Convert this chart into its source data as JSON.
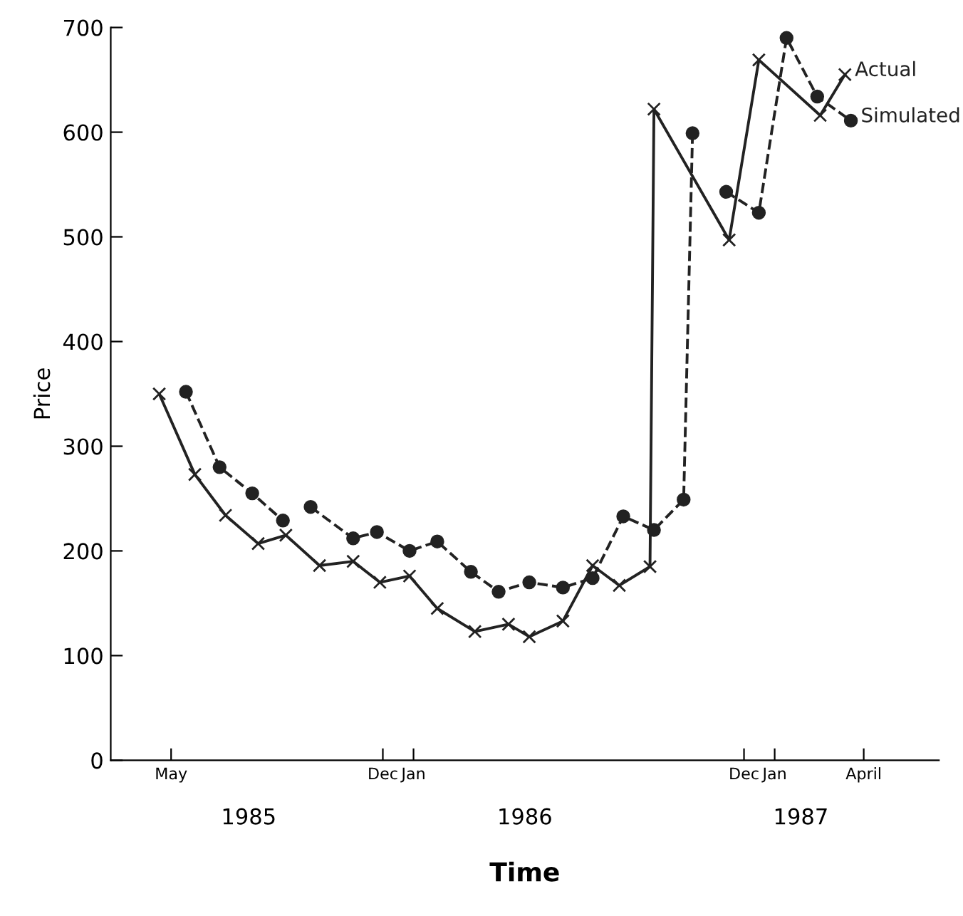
{
  "chart_data": {
    "type": "line",
    "xlabel": "Time",
    "ylabel": "Price",
    "xlim": [
      "1985-03-01",
      "1987-06-16"
    ],
    "ylim": [
      0,
      700
    ],
    "yticks": [
      0,
      100,
      200,
      300,
      400,
      500,
      600,
      700
    ],
    "xticks": [
      {
        "value": "1985-05",
        "label": "May"
      },
      {
        "value": "1985-12",
        "label": "Dec"
      },
      {
        "value": "1986-01",
        "label": "Jan"
      },
      {
        "value": "1986-12",
        "label": "Dec"
      },
      {
        "value": "1987-01",
        "label": "Jan"
      },
      {
        "value": "1987-04",
        "label": "April"
      }
    ],
    "annotations": [
      "1985",
      "1986",
      "1987"
    ],
    "grid": false,
    "legend": false,
    "series": [
      {
        "name": "Actual",
        "color": "#222222",
        "marker": "cross",
        "line_style": "solid",
        "x": [
          "1985-04-19",
          "1985-05-25",
          "1985-06-25",
          "1985-07-28",
          "1985-08-25",
          "1985-09-28",
          "1985-11-01",
          "1985-11-28",
          "1985-12-28",
          "1986-01-25",
          "1986-03-04",
          "1986-04-07",
          "1986-04-28",
          "1986-06-01",
          "1986-07-01",
          "1986-07-28",
          "1986-08-28",
          "1986-09-01",
          "1986-11-16",
          "1986-12-16",
          "1987-02-16",
          "1987-03-13"
        ],
        "values": [
          350,
          273,
          234,
          207,
          215,
          186,
          190,
          170,
          176,
          145,
          123,
          130,
          118,
          133,
          186,
          167,
          185,
          622,
          497,
          669,
          616,
          655
        ]
      },
      {
        "name": "Simulated",
        "color": "#222222",
        "marker": "circle",
        "line_style": "dashed",
        "x": [
          "1985-05-16",
          "1985-06-19",
          "1985-07-22",
          "1985-08-22",
          "1985-09-07",
          "1985-09-19",
          "1985-11-01",
          "1985-11-25",
          "1985-12-28",
          "1986-01-25",
          "1986-02-28",
          "1986-03-28",
          "1986-04-28",
          "1986-06-01",
          "1986-07-01",
          "1986-08-01",
          "1986-09-01",
          "1986-10-01",
          "1986-10-10",
          "1986-10-28",
          "1986-11-13",
          "1986-12-16",
          "1987-01-13",
          "1987-02-13",
          "1987-03-19"
        ],
        "values": [
          352,
          280,
          255,
          229,
          null,
          242,
          212,
          218,
          200,
          209,
          180,
          161,
          170,
          165,
          174,
          233,
          220,
          249,
          599,
          null,
          543,
          523,
          690,
          634,
          611
        ]
      }
    ]
  }
}
